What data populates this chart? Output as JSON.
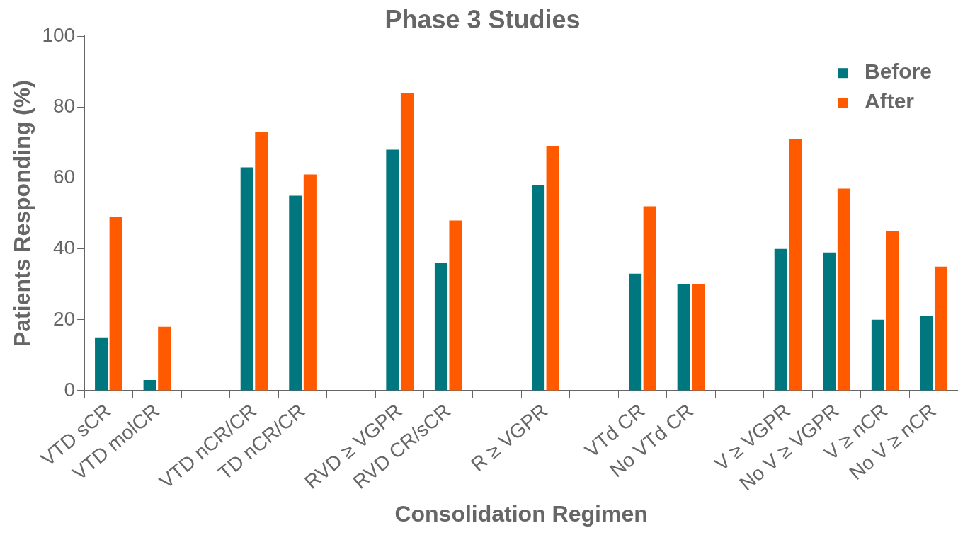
{
  "chart_data": {
    "type": "bar",
    "title": "Phase 3 Studies",
    "xlabel": "Consolidation Regimen",
    "ylabel": "Patients Responding (%)",
    "categories": [
      "VTD sCR",
      "VTD molCR",
      null,
      "VTD nCR/CR",
      "TD nCR/CR",
      null,
      "RVD ≥ VGPR",
      "RVD CR/sCR",
      null,
      "R ≥ VGPR",
      null,
      "VTd CR",
      "No VTd CR",
      null,
      "V ≥ VGPR",
      "No V ≥ VGPR",
      "V ≥ nCR",
      "No V ≥ nCR"
    ],
    "series": [
      {
        "name": "Before",
        "color": "#00777f",
        "values": [
          15,
          3,
          null,
          63,
          55,
          null,
          68,
          36,
          null,
          58,
          null,
          33,
          30,
          null,
          40,
          39,
          20,
          21
        ]
      },
      {
        "name": "After",
        "color": "#ff5a00",
        "values": [
          49,
          18,
          null,
          73,
          61,
          null,
          84,
          48,
          null,
          69,
          null,
          52,
          30,
          null,
          71,
          57,
          45,
          35
        ]
      }
    ],
    "ylim": [
      0,
      100
    ],
    "yticks": [
      0,
      20,
      40,
      60,
      80,
      100
    ],
    "grid": false,
    "legend": "top right"
  }
}
